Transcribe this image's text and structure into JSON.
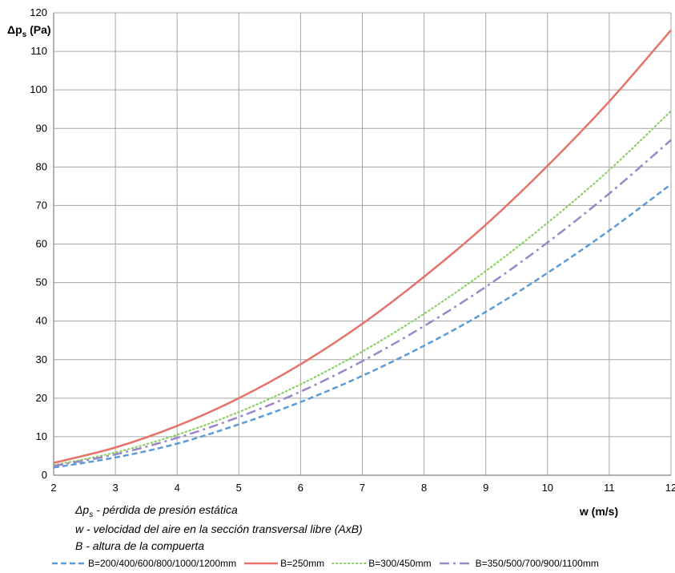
{
  "chart_data": {
    "type": "line",
    "ylabel_main": "Δp",
    "ylabel_sub": "s",
    "ylabel_unit": " (Pa)",
    "xlabel": "w (m/s)",
    "xlim": [
      2,
      12
    ],
    "ylim": [
      0,
      120
    ],
    "x_ticks": [
      "2",
      "3",
      "4",
      "5",
      "6",
      "7",
      "8",
      "9",
      "10",
      "11",
      "12"
    ],
    "y_ticks": [
      "0",
      "10",
      "20",
      "30",
      "40",
      "50",
      "60",
      "70",
      "80",
      "90",
      "100",
      "110",
      "120"
    ],
    "grid": true,
    "legend_position": "bottom",
    "x": [
      2,
      3,
      4,
      5,
      6,
      7,
      8,
      9,
      10,
      11,
      12
    ],
    "series": [
      {
        "name": "B=200/400/600/800/1000/1200mm",
        "color": "#5b9bd5",
        "dash": "dash",
        "values": [
          2.0,
          4.6,
          8.2,
          13.2,
          19.0,
          25.8,
          33.6,
          42.4,
          52.5,
          63.5,
          75.5
        ]
      },
      {
        "name": "B=250mm",
        "color": "#e57368",
        "dash": "solid",
        "values": [
          3.2,
          7.2,
          12.8,
          20.0,
          28.8,
          39.3,
          51.5,
          65.0,
          80.3,
          97.0,
          115.5
        ]
      },
      {
        "name": "B=300/450mm",
        "color": "#8fcf6a",
        "dash": "dot",
        "values": [
          2.6,
          5.9,
          10.5,
          16.4,
          23.6,
          32.1,
          41.9,
          53.0,
          65.5,
          79.2,
          94.5
        ]
      },
      {
        "name": "B=350/500/700/900/1100mm",
        "color": "#9b86c8",
        "dash": "dashdot",
        "values": [
          2.4,
          5.4,
          9.7,
          15.1,
          21.7,
          29.6,
          38.7,
          48.9,
          60.4,
          73.1,
          87.0
        ]
      }
    ]
  },
  "notes": {
    "line1_sym": "Δp",
    "line1_sub": "s",
    "line1_text": " - pérdida de presión estática",
    "line2": "w - velocidad del aire en la sección transversal libre (AxB)",
    "line3": "B - altura de la compuerta"
  }
}
